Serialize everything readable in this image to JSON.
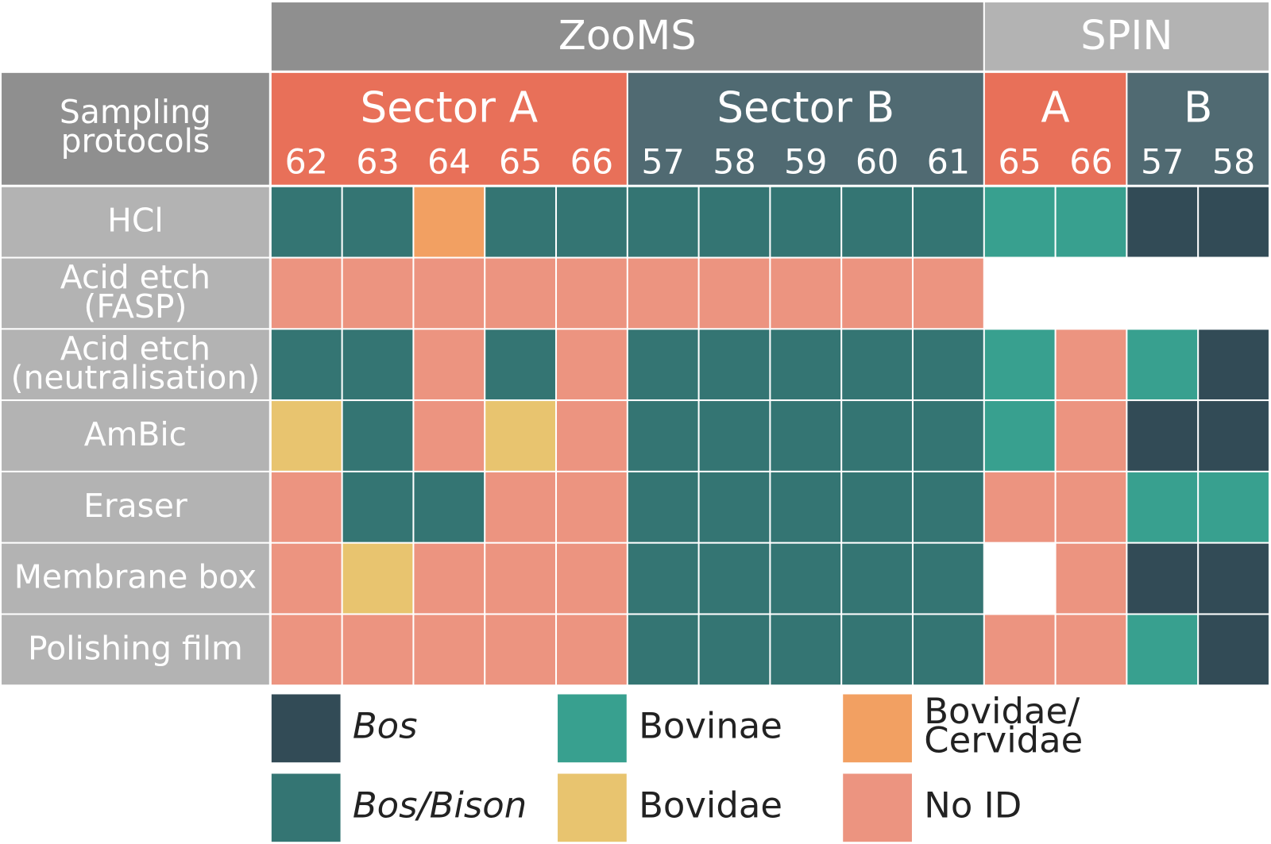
{
  "header": {
    "groups": [
      {
        "label": "ZooMS",
        "color": "#8f8f8f",
        "sectors": [
          {
            "label": "Sector A",
            "color": "#e87059",
            "columns": [
              "62",
              "63",
              "64",
              "65",
              "66"
            ]
          },
          {
            "label": "Sector B",
            "color": "#506a72",
            "columns": [
              "57",
              "58",
              "59",
              "60",
              "61"
            ]
          }
        ]
      },
      {
        "label": "SPIN",
        "color": "#b3b3b3",
        "sectors": [
          {
            "label": "A",
            "color": "#e87059",
            "columns": [
              "65",
              "66"
            ]
          },
          {
            "label": "B",
            "color": "#506a72",
            "columns": [
              "57",
              "58"
            ]
          }
        ]
      }
    ]
  },
  "row_header": {
    "label": [
      "Sampling",
      "protocols"
    ],
    "color": "#8f8f8f"
  },
  "row_label_color": "#b3b3b3",
  "rows": [
    {
      "label": [
        "HCl"
      ],
      "cells": [
        1,
        1,
        4,
        1,
        1,
        1,
        1,
        1,
        1,
        1,
        2,
        2,
        0,
        0
      ]
    },
    {
      "label": [
        "Acid etch",
        "(FASP)"
      ],
      "cells": [
        5,
        5,
        5,
        5,
        5,
        5,
        5,
        5,
        5,
        5,
        null,
        null,
        null,
        null
      ]
    },
    {
      "label": [
        "Acid etch",
        "(neutralisation)"
      ],
      "cells": [
        1,
        1,
        5,
        1,
        5,
        1,
        1,
        1,
        1,
        1,
        2,
        5,
        2,
        0
      ]
    },
    {
      "label": [
        "AmBic"
      ],
      "cells": [
        3,
        1,
        5,
        3,
        5,
        1,
        1,
        1,
        1,
        1,
        2,
        5,
        0,
        0
      ]
    },
    {
      "label": [
        "Eraser"
      ],
      "cells": [
        5,
        1,
        1,
        5,
        5,
        1,
        1,
        1,
        1,
        1,
        5,
        5,
        2,
        2
      ]
    },
    {
      "label": [
        "Membrane box"
      ],
      "cells": [
        5,
        3,
        5,
        5,
        5,
        1,
        1,
        1,
        1,
        1,
        null,
        5,
        0,
        0
      ]
    },
    {
      "label": [
        "Polishing film"
      ],
      "cells": [
        5,
        5,
        5,
        5,
        5,
        1,
        1,
        1,
        1,
        1,
        5,
        5,
        2,
        0
      ]
    }
  ],
  "legend": [
    {
      "label": [
        "Bos"
      ],
      "color": "#324b56",
      "italic": true
    },
    {
      "label": [
        "Bos/Bison"
      ],
      "color": "#347573",
      "italic": true
    },
    {
      "label": [
        "Bovinae"
      ],
      "color": "#38a08f",
      "italic": false
    },
    {
      "label": [
        "Bovidae"
      ],
      "color": "#e8c46f",
      "italic": false
    },
    {
      "label": [
        "Bovidae/",
        "Cervidae"
      ],
      "color": "#f2a062",
      "italic": false
    },
    {
      "label": [
        "No ID"
      ],
      "color": "#ec9480",
      "italic": false
    }
  ]
}
